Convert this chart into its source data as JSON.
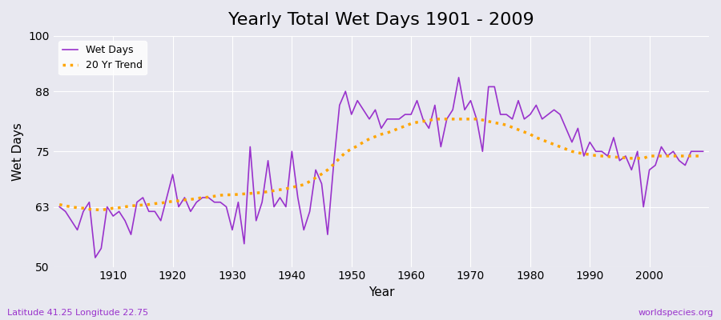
{
  "title": "Yearly Total Wet Days 1901 - 2009",
  "xlabel": "Year",
  "ylabel": "Wet Days",
  "footnote_left": "Latitude 41.25 Longitude 22.75",
  "footnote_right": "worldspecies.org",
  "legend_wet": "Wet Days",
  "legend_trend": "20 Yr Trend",
  "wet_color": "#9932CC",
  "trend_color": "#FFA500",
  "bg_color": "#E8E8F0",
  "ylim": [
    50,
    100
  ],
  "yticks": [
    50,
    63,
    75,
    88,
    100
  ],
  "years": [
    1901,
    1902,
    1903,
    1904,
    1905,
    1906,
    1907,
    1908,
    1909,
    1910,
    1911,
    1912,
    1913,
    1914,
    1915,
    1916,
    1917,
    1918,
    1919,
    1920,
    1921,
    1922,
    1923,
    1924,
    1925,
    1926,
    1927,
    1928,
    1929,
    1930,
    1931,
    1932,
    1933,
    1934,
    1935,
    1936,
    1937,
    1938,
    1939,
    1940,
    1941,
    1942,
    1943,
    1944,
    1945,
    1946,
    1947,
    1948,
    1949,
    1950,
    1951,
    1952,
    1953,
    1954,
    1955,
    1956,
    1957,
    1958,
    1959,
    1960,
    1961,
    1962,
    1963,
    1964,
    1965,
    1966,
    1967,
    1968,
    1969,
    1970,
    1971,
    1972,
    1973,
    1974,
    1975,
    1976,
    1977,
    1978,
    1979,
    1980,
    1981,
    1982,
    1983,
    1984,
    1985,
    1986,
    1987,
    1988,
    1989,
    1990,
    1991,
    1992,
    1993,
    1994,
    1995,
    1996,
    1997,
    1998,
    1999,
    2000,
    2001,
    2002,
    2003,
    2004,
    2005,
    2006,
    2007,
    2008,
    2009
  ],
  "wet_days": [
    63.0,
    62.0,
    60.0,
    58.0,
    62.0,
    64.0,
    52.0,
    54.0,
    63.0,
    61.0,
    62.0,
    60.0,
    57.0,
    64.0,
    65.0,
    62.0,
    62.0,
    60.0,
    65.0,
    70.0,
    63.0,
    65.0,
    62.0,
    64.0,
    65.0,
    65.0,
    64.0,
    64.0,
    63.0,
    58.0,
    64.0,
    55.0,
    76.0,
    60.0,
    64.0,
    73.0,
    63.0,
    65.0,
    63.0,
    75.0,
    65.0,
    58.0,
    62.0,
    71.0,
    68.0,
    57.0,
    72.0,
    85.0,
    88.0,
    83.0,
    86.0,
    84.0,
    82.0,
    84.0,
    80.0,
    82.0,
    82.0,
    82.0,
    83.0,
    83.0,
    86.0,
    82.0,
    80.0,
    85.0,
    76.0,
    82.0,
    84.0,
    91.0,
    84.0,
    86.0,
    82.0,
    75.0,
    89.0,
    89.0,
    83.0,
    83.0,
    82.0,
    86.0,
    82.0,
    83.0,
    85.0,
    82.0,
    83.0,
    84.0,
    83.0,
    80.0,
    77.0,
    80.0,
    74.0,
    77.0,
    75.0,
    75.0,
    74.0,
    78.0,
    73.0,
    74.0,
    71.0,
    75.0,
    63.0,
    71.0,
    72.0,
    76.0,
    74.0,
    75.0,
    73.0,
    72.0,
    75.0,
    75.0,
    75.0
  ],
  "trend": [
    63.5,
    63.2,
    63.0,
    62.8,
    62.7,
    62.5,
    62.4,
    62.3,
    62.5,
    62.7,
    62.8,
    63.0,
    63.2,
    63.3,
    63.4,
    63.5,
    63.7,
    63.8,
    64.0,
    64.2,
    64.3,
    64.5,
    64.6,
    64.8,
    65.0,
    65.1,
    65.3,
    65.5,
    65.6,
    65.6,
    65.7,
    65.8,
    65.9,
    66.0,
    66.1,
    66.3,
    66.5,
    66.7,
    66.9,
    67.2,
    67.5,
    67.8,
    68.5,
    69.3,
    70.1,
    71.0,
    72.2,
    73.5,
    74.8,
    75.5,
    76.2,
    77.0,
    77.7,
    78.2,
    78.7,
    79.0,
    79.5,
    80.0,
    80.5,
    81.0,
    81.3,
    81.5,
    81.7,
    82.0,
    82.0,
    82.0,
    82.0,
    82.0,
    82.0,
    82.0,
    82.0,
    81.8,
    81.5,
    81.2,
    81.0,
    80.7,
    80.2,
    79.7,
    79.2,
    78.7,
    78.0,
    77.5,
    77.0,
    76.5,
    76.0,
    75.5,
    75.0,
    74.7,
    74.5,
    74.3,
    74.1,
    74.0,
    73.9,
    73.8,
    73.7,
    73.6,
    73.5,
    73.5,
    73.5,
    74.0,
    74.0,
    74.0,
    74.0,
    74.0,
    74.0,
    74.0,
    74.0,
    74.0,
    74.0
  ]
}
